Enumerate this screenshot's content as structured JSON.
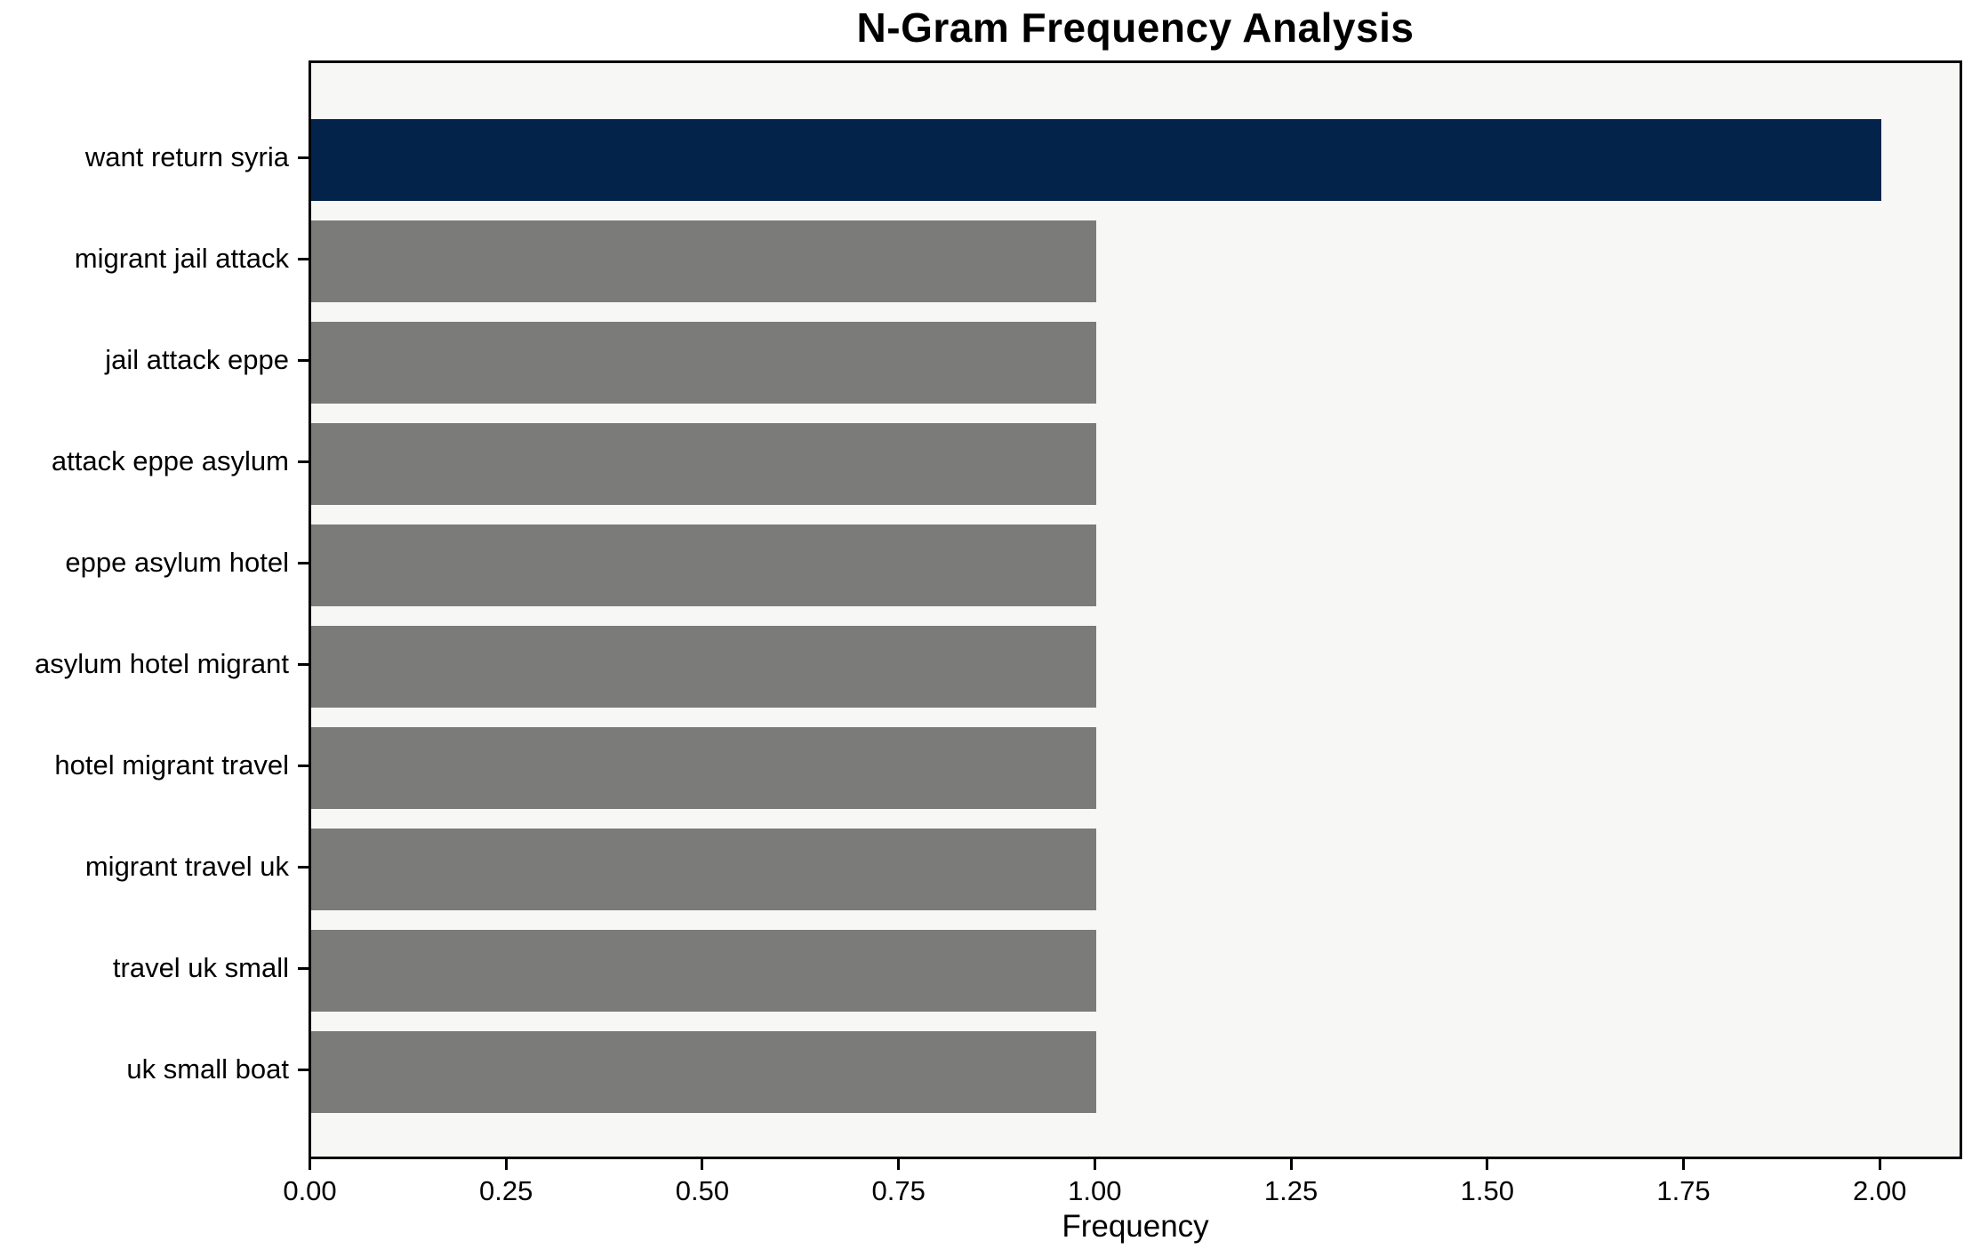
{
  "chart_data": {
    "type": "bar",
    "orientation": "horizontal",
    "title": "N-Gram Frequency Analysis",
    "xlabel": "Frequency",
    "ylabel": "",
    "categories": [
      "want return syria",
      "migrant jail attack",
      "jail attack eppe",
      "attack eppe asylum",
      "eppe asylum hotel",
      "asylum hotel migrant",
      "hotel migrant travel",
      "migrant travel uk",
      "travel uk small",
      "uk small boat"
    ],
    "values": [
      2,
      1,
      1,
      1,
      1,
      1,
      1,
      1,
      1,
      1
    ],
    "bar_colors": [
      "#03234b",
      "#7b7b79",
      "#7b7b79",
      "#7b7b79",
      "#7b7b79",
      "#7b7b79",
      "#7b7b79",
      "#7b7b79",
      "#7b7b79",
      "#7b7b79"
    ],
    "xlim": [
      0,
      2.1
    ],
    "x_ticks": [
      "0.00",
      "0.25",
      "0.50",
      "0.75",
      "1.00",
      "1.25",
      "1.50",
      "1.75",
      "2.00"
    ],
    "x_tick_values": [
      0,
      0.25,
      0.5,
      0.75,
      1.0,
      1.25,
      1.5,
      1.75,
      2.0
    ],
    "grid": "off",
    "legend": "none",
    "colors": {
      "highlight_bar": "#03234b",
      "default_bar": "#7b7b79",
      "plot_background": "#f7f7f6",
      "figure_background": "#ffffff",
      "spine": "#000000",
      "text": "#000000"
    }
  }
}
